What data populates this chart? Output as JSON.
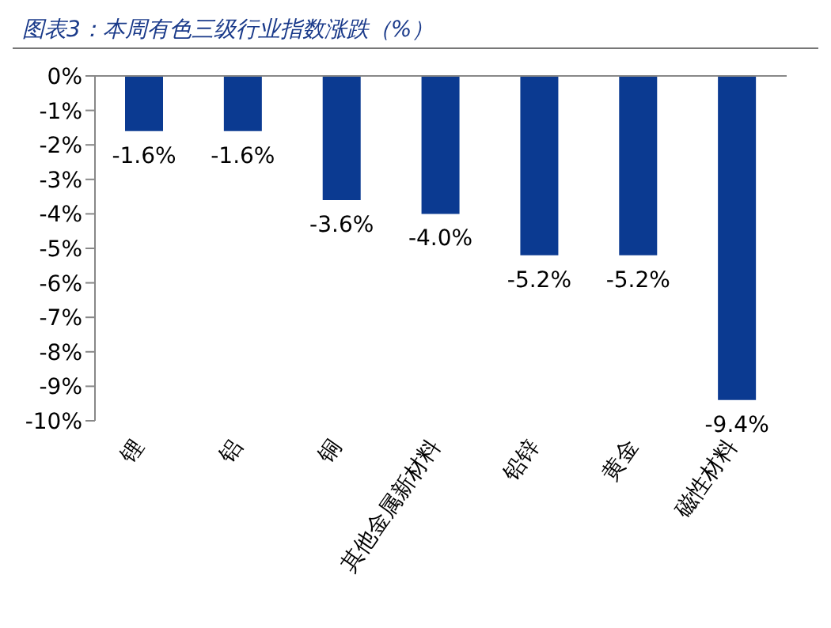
{
  "chart_data": {
    "type": "bar",
    "title": "图表3：本周有色三级行业指数涨跌（%）",
    "categories": [
      "锂",
      "铝",
      "铜",
      "其他金属新材料",
      "铅锌",
      "黄金",
      "磁性材料"
    ],
    "values": [
      -1.6,
      -1.6,
      -3.6,
      -4.0,
      -5.2,
      -5.2,
      -9.4
    ],
    "value_labels": [
      "-1.6%",
      "-1.6%",
      "-3.6%",
      "-4.0%",
      "-5.2%",
      "-5.2%",
      "-9.4%"
    ],
    "color": "#0b3a91",
    "ylim": [
      -10,
      0
    ],
    "yticks": [
      {
        "value": 0,
        "label": "0%"
      },
      {
        "value": -1,
        "label": "-1%"
      },
      {
        "value": -2,
        "label": "-2%"
      },
      {
        "value": -3,
        "label": "-3%"
      },
      {
        "value": -4,
        "label": "-4%"
      },
      {
        "value": -5,
        "label": "-5%"
      },
      {
        "value": -6,
        "label": "-6%"
      },
      {
        "value": -7,
        "label": "-7%"
      },
      {
        "value": -8,
        "label": "-8%"
      },
      {
        "value": -9,
        "label": "-9%"
      },
      {
        "value": -10,
        "label": "-10%"
      }
    ],
    "grid": false,
    "legend": false
  }
}
